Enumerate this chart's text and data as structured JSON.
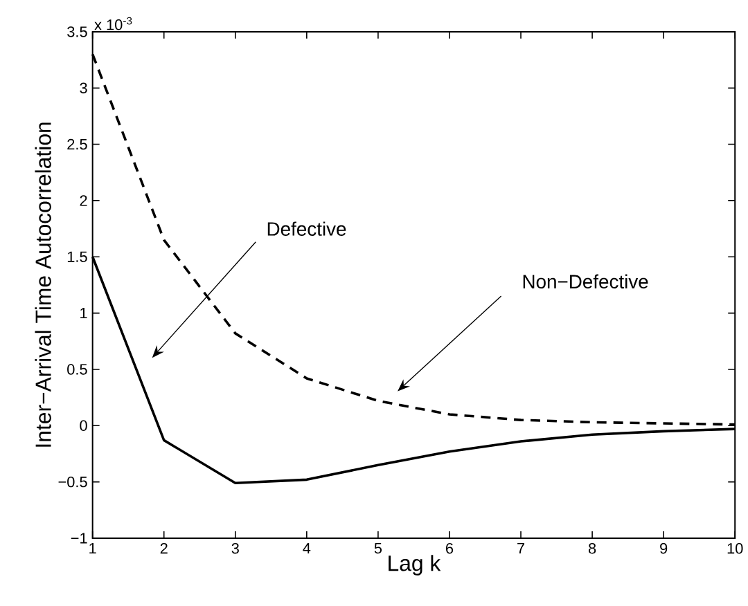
{
  "chart_data": {
    "type": "line",
    "xlabel": "Lag k",
    "ylabel": "Inter−Arrival Time Autocorrelation",
    "x": [
      1,
      2,
      3,
      4,
      5,
      6,
      7,
      8,
      9,
      10
    ],
    "series": [
      {
        "color": "#000000",
        "line_style": "solid",
        "values": [
          1.5,
          -0.13,
          -0.51,
          -0.48,
          -0.35,
          -0.23,
          -0.14,
          -0.08,
          -0.05,
          -0.03
        ]
      },
      {
        "color": "#000000",
        "line_style": "dashed",
        "values": [
          3.3,
          1.65,
          0.82,
          0.42,
          0.22,
          0.1,
          0.05,
          0.03,
          0.02,
          0.01
        ]
      }
    ],
    "xlim": [
      1,
      10
    ],
    "ylim": [
      -1,
      3.5
    ],
    "xticks": [
      1,
      2,
      3,
      4,
      5,
      6,
      7,
      8,
      9,
      10
    ],
    "yticks": [
      {
        "value": -1,
        "label": "−1"
      },
      {
        "value": -0.5,
        "label": "−0.5"
      },
      0,
      0.5,
      1,
      1.5,
      2,
      2.5,
      3,
      3.5
    ],
    "grid": false,
    "marker": "none",
    "annotations": [
      "x 10$^{-3}$",
      "Defective",
      "Non−Defective"
    ]
  }
}
